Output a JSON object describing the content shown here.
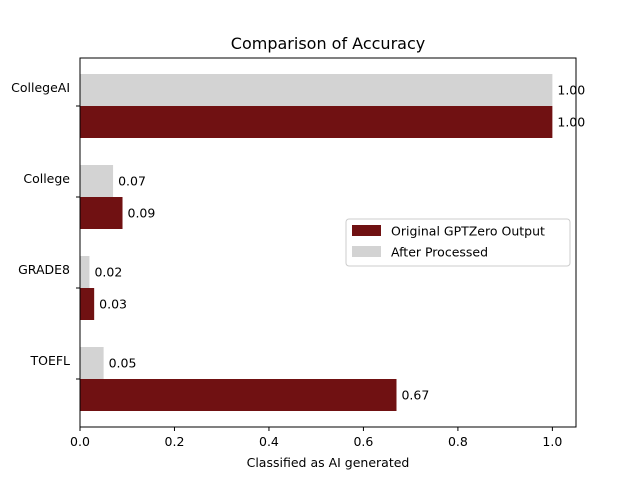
{
  "chart_data": {
    "type": "bar",
    "orientation": "horizontal",
    "title": "Comparison of Accuracy",
    "xlabel": "Classified as AI generated",
    "ylabel": "",
    "categories": [
      "CollegeAI",
      "College",
      "GRADE8",
      "TOEFL"
    ],
    "xlim": [
      0,
      1.05
    ],
    "xticks": [
      "0.0",
      "0.2",
      "0.4",
      "0.6",
      "0.8",
      "1.0"
    ],
    "grid": false,
    "legend_position": "center-right",
    "series": [
      {
        "name": "Original GPTZero Output",
        "color": "#701112",
        "values": [
          1.0,
          0.09,
          0.03,
          0.67
        ],
        "labels": [
          "1.00",
          "0.09",
          "0.03",
          "0.67"
        ]
      },
      {
        "name": "After Processed",
        "color": "#d3d3d3",
        "values": [
          1.0,
          0.07,
          0.02,
          0.05
        ],
        "labels": [
          "1.00",
          "0.07",
          "0.02",
          "0.05"
        ]
      }
    ]
  }
}
